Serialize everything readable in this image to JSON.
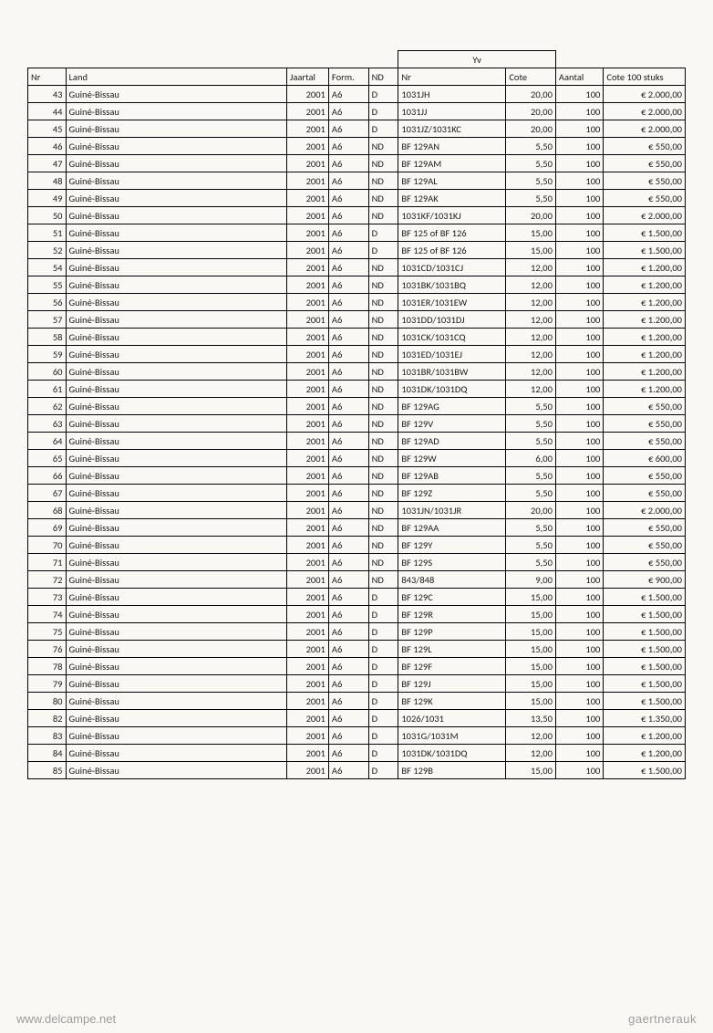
{
  "table": {
    "yv_group_label": "Yv",
    "headers": {
      "nr": "Nr",
      "land": "Land",
      "jaartal": "Jaartal",
      "form": "Form.",
      "nd": "ND",
      "yvnr": "Nr",
      "cote": "Cote",
      "aantal": "Aantal",
      "cote100": "Cote 100 stuks"
    },
    "rows": [
      {
        "nr": "43",
        "land": "Guiné-Bissau",
        "jaar": "2001",
        "form": "A6",
        "nd": "D",
        "yvnr": "1031JH",
        "cote": "20,00",
        "aantal": "100",
        "c100": "€ 2.000,00"
      },
      {
        "nr": "44",
        "land": "Guiné-Bissau",
        "jaar": "2001",
        "form": "A6",
        "nd": "D",
        "yvnr": "1031JJ",
        "cote": "20,00",
        "aantal": "100",
        "c100": "€ 2.000,00"
      },
      {
        "nr": "45",
        "land": "Guiné-Bissau",
        "jaar": "2001",
        "form": "A6",
        "nd": "D",
        "yvnr": "1031JZ/1031KC",
        "cote": "20,00",
        "aantal": "100",
        "c100": "€ 2.000,00"
      },
      {
        "nr": "46",
        "land": "Guiné-Bissau",
        "jaar": "2001",
        "form": "A6",
        "nd": "ND",
        "yvnr": "BF 129AN",
        "cote": "5,50",
        "aantal": "100",
        "c100": "€ 550,00"
      },
      {
        "nr": "47",
        "land": "Guiné-Bissau",
        "jaar": "2001",
        "form": "A6",
        "nd": "ND",
        "yvnr": "BF 129AM",
        "cote": "5,50",
        "aantal": "100",
        "c100": "€ 550,00"
      },
      {
        "nr": "48",
        "land": "Guiné-Bissau",
        "jaar": "2001",
        "form": "A6",
        "nd": "ND",
        "yvnr": "BF 129AL",
        "cote": "5,50",
        "aantal": "100",
        "c100": "€ 550,00"
      },
      {
        "nr": "49",
        "land": "Guiné-Bissau",
        "jaar": "2001",
        "form": "A6",
        "nd": "ND",
        "yvnr": "BF 129AK",
        "cote": "5,50",
        "aantal": "100",
        "c100": "€ 550,00"
      },
      {
        "nr": "50",
        "land": "Guiné-Bissau",
        "jaar": "2001",
        "form": "A6",
        "nd": "ND",
        "yvnr": "1031KF/1031KJ",
        "cote": "20,00",
        "aantal": "100",
        "c100": "€ 2.000,00"
      },
      {
        "nr": "51",
        "land": "Guiné-Bissau",
        "jaar": "2001",
        "form": "A6",
        "nd": "D",
        "yvnr": "BF 125 of BF 126",
        "cote": "15,00",
        "aantal": "100",
        "c100": "€ 1.500,00"
      },
      {
        "nr": "52",
        "land": "Guiné-Bissau",
        "jaar": "2001",
        "form": "A6",
        "nd": "D",
        "yvnr": "BF 125 of BF 126",
        "cote": "15,00",
        "aantal": "100",
        "c100": "€ 1.500,00"
      },
      {
        "nr": "54",
        "land": "Guiné-Bissau",
        "jaar": "2001",
        "form": "A6",
        "nd": "ND",
        "yvnr": "1031CD/1031CJ",
        "cote": "12,00",
        "aantal": "100",
        "c100": "€ 1.200,00"
      },
      {
        "nr": "55",
        "land": "Guiné-Bissau",
        "jaar": "2001",
        "form": "A6",
        "nd": "ND",
        "yvnr": "1031BK/1031BQ",
        "cote": "12,00",
        "aantal": "100",
        "c100": "€ 1.200,00"
      },
      {
        "nr": "56",
        "land": "Guiné-Bissau",
        "jaar": "2001",
        "form": "A6",
        "nd": "ND",
        "yvnr": "1031ER/1031EW",
        "cote": "12,00",
        "aantal": "100",
        "c100": "€ 1.200,00"
      },
      {
        "nr": "57",
        "land": "Guiné-Bissau",
        "jaar": "2001",
        "form": "A6",
        "nd": "ND",
        "yvnr": "1031DD/1031DJ",
        "cote": "12,00",
        "aantal": "100",
        "c100": "€ 1.200,00"
      },
      {
        "nr": "58",
        "land": "Guiné-Bissau",
        "jaar": "2001",
        "form": "A6",
        "nd": "ND",
        "yvnr": "1031CK/1031CQ",
        "cote": "12,00",
        "aantal": "100",
        "c100": "€ 1.200,00"
      },
      {
        "nr": "59",
        "land": "Guiné-Bissau",
        "jaar": "2001",
        "form": "A6",
        "nd": "ND",
        "yvnr": "1031ED/1031EJ",
        "cote": "12,00",
        "aantal": "100",
        "c100": "€ 1.200,00"
      },
      {
        "nr": "60",
        "land": "Guiné-Bissau",
        "jaar": "2001",
        "form": "A6",
        "nd": "ND",
        "yvnr": "1031BR/1031BW",
        "cote": "12,00",
        "aantal": "100",
        "c100": "€ 1.200,00"
      },
      {
        "nr": "61",
        "land": "Guiné-Bissau",
        "jaar": "2001",
        "form": "A6",
        "nd": "ND",
        "yvnr": "1031DK/1031DQ",
        "cote": "12,00",
        "aantal": "100",
        "c100": "€ 1.200,00"
      },
      {
        "nr": "62",
        "land": "Guiné-Bissau",
        "jaar": "2001",
        "form": "A6",
        "nd": "ND",
        "yvnr": "BF 129AG",
        "cote": "5,50",
        "aantal": "100",
        "c100": "€ 550,00"
      },
      {
        "nr": "63",
        "land": "Guiné-Bissau",
        "jaar": "2001",
        "form": "A6",
        "nd": "ND",
        "yvnr": "BF 129V",
        "cote": "5,50",
        "aantal": "100",
        "c100": "€ 550,00"
      },
      {
        "nr": "64",
        "land": "Guiné-Bissau",
        "jaar": "2001",
        "form": "A6",
        "nd": "ND",
        "yvnr": "BF 129AD",
        "cote": "5,50",
        "aantal": "100",
        "c100": "€ 550,00"
      },
      {
        "nr": "65",
        "land": "Guiné-Bissau",
        "jaar": "2001",
        "form": "A6",
        "nd": "ND",
        "yvnr": "BF 129W",
        "cote": "6,00",
        "aantal": "100",
        "c100": "€ 600,00"
      },
      {
        "nr": "66",
        "land": "Guiné-Bissau",
        "jaar": "2001",
        "form": "A6",
        "nd": "ND",
        "yvnr": "BF 129AB",
        "cote": "5,50",
        "aantal": "100",
        "c100": "€ 550,00"
      },
      {
        "nr": "67",
        "land": "Guiné-Bissau",
        "jaar": "2001",
        "form": "A6",
        "nd": "ND",
        "yvnr": "BF 129Z",
        "cote": "5,50",
        "aantal": "100",
        "c100": "€ 550,00"
      },
      {
        "nr": "68",
        "land": "Guiné-Bissau",
        "jaar": "2001",
        "form": "A6",
        "nd": "ND",
        "yvnr": "1031JN/1031JR",
        "cote": "20,00",
        "aantal": "100",
        "c100": "€ 2.000,00"
      },
      {
        "nr": "69",
        "land": "Guiné-Bissau",
        "jaar": "2001",
        "form": "A6",
        "nd": "ND",
        "yvnr": "BF 129AA",
        "cote": "5,50",
        "aantal": "100",
        "c100": "€ 550,00"
      },
      {
        "nr": "70",
        "land": "Guiné-Bissau",
        "jaar": "2001",
        "form": "A6",
        "nd": "ND",
        "yvnr": "BF 129Y",
        "cote": "5,50",
        "aantal": "100",
        "c100": "€ 550,00"
      },
      {
        "nr": "71",
        "land": "Guiné-Bissau",
        "jaar": "2001",
        "form": "A6",
        "nd": "ND",
        "yvnr": "BF 129S",
        "cote": "5,50",
        "aantal": "100",
        "c100": "€ 550,00"
      },
      {
        "nr": "72",
        "land": "Guiné-Bissau",
        "jaar": "2001",
        "form": "A6",
        "nd": "ND",
        "yvnr": "843/848",
        "cote": "9,00",
        "aantal": "100",
        "c100": "€ 900,00"
      },
      {
        "nr": "73",
        "land": "Guiné-Bissau",
        "jaar": "2001",
        "form": "A6",
        "nd": "D",
        "yvnr": "BF 129C",
        "cote": "15,00",
        "aantal": "100",
        "c100": "€ 1.500,00"
      },
      {
        "nr": "74",
        "land": "Guiné-Bissau",
        "jaar": "2001",
        "form": "A6",
        "nd": "D",
        "yvnr": "BF 129R",
        "cote": "15,00",
        "aantal": "100",
        "c100": "€ 1.500,00"
      },
      {
        "nr": "75",
        "land": "Guiné-Bissau",
        "jaar": "2001",
        "form": "A6",
        "nd": "D",
        "yvnr": "BF 129P",
        "cote": "15,00",
        "aantal": "100",
        "c100": "€ 1.500,00"
      },
      {
        "nr": "76",
        "land": "Guiné-Bissau",
        "jaar": "2001",
        "form": "A6",
        "nd": "D",
        "yvnr": "BF 129L",
        "cote": "15,00",
        "aantal": "100",
        "c100": "€ 1.500,00"
      },
      {
        "nr": "78",
        "land": "Guiné-Bissau",
        "jaar": "2001",
        "form": "A6",
        "nd": "D",
        "yvnr": "BF 129F",
        "cote": "15,00",
        "aantal": "100",
        "c100": "€ 1.500,00"
      },
      {
        "nr": "79",
        "land": "Guiné-Bissau",
        "jaar": "2001",
        "form": "A6",
        "nd": "D",
        "yvnr": "BF 129J",
        "cote": "15,00",
        "aantal": "100",
        "c100": "€ 1.500,00"
      },
      {
        "nr": "80",
        "land": "Guiné-Bissau",
        "jaar": "2001",
        "form": "A6",
        "nd": "D",
        "yvnr": "BF 129K",
        "cote": "15,00",
        "aantal": "100",
        "c100": "€ 1.500,00"
      },
      {
        "nr": "82",
        "land": "Guiné-Bissau",
        "jaar": "2001",
        "form": "A6",
        "nd": "D",
        "yvnr": "1026/1031",
        "cote": "13,50",
        "aantal": "100",
        "c100": "€ 1.350,00"
      },
      {
        "nr": "83",
        "land": "Guiné-Bissau",
        "jaar": "2001",
        "form": "A6",
        "nd": "D",
        "yvnr": "1031G/1031M",
        "cote": "12,00",
        "aantal": "100",
        "c100": "€ 1.200,00"
      },
      {
        "nr": "84",
        "land": "Guiné-Bissau",
        "jaar": "2001",
        "form": "A6",
        "nd": "D",
        "yvnr": "1031DK/1031DQ",
        "cote": "12,00",
        "aantal": "100",
        "c100": "€ 1.200,00"
      },
      {
        "nr": "85",
        "land": "Guiné-Bissau",
        "jaar": "2001",
        "form": "A6",
        "nd": "D",
        "yvnr": "BF 129B",
        "cote": "15,00",
        "aantal": "100",
        "c100": "€ 1.500,00"
      }
    ]
  },
  "watermark_left": "www.delcampe.net",
  "watermark_right": "gaertnerauk"
}
